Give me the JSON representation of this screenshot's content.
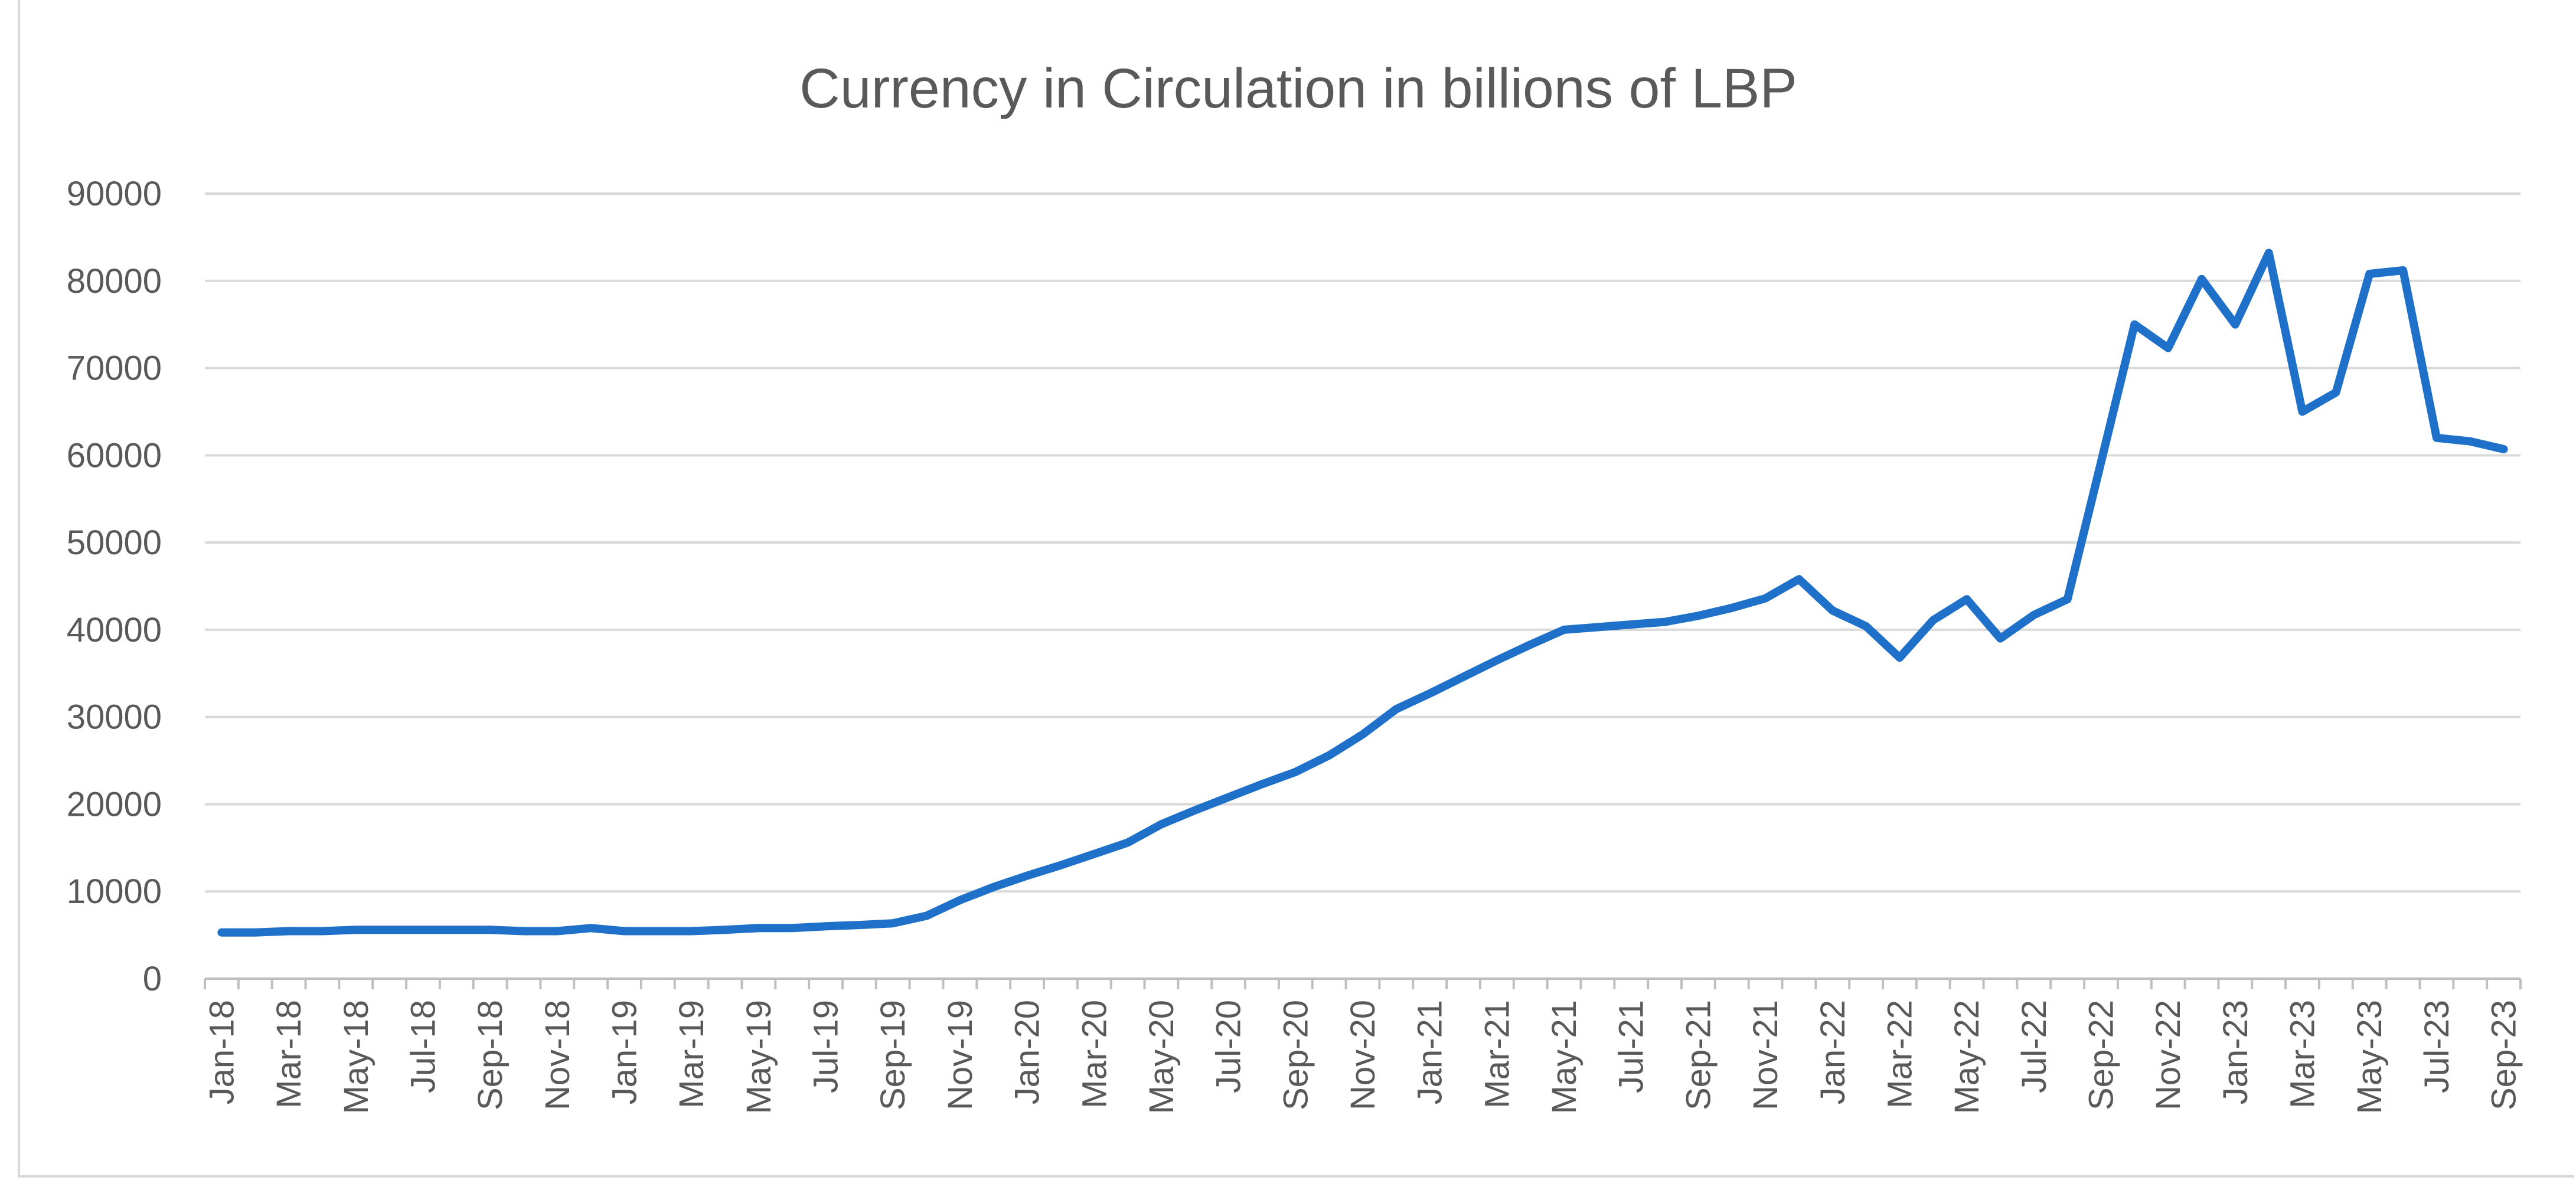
{
  "chart_data": {
    "type": "line",
    "title": "Currency in Circulation in billions of LBP",
    "xlabel": "",
    "ylabel": "",
    "ylim": [
      0,
      90000
    ],
    "yticks": [
      "0",
      "10000",
      "20000",
      "30000",
      "40000",
      "50000",
      "60000",
      "70000",
      "80000",
      "90000"
    ],
    "grid": true,
    "legend": "none",
    "categories": [
      "Jan-18",
      "Feb-18",
      "Mar-18",
      "Apr-18",
      "May-18",
      "Jun-18",
      "Jul-18",
      "Aug-18",
      "Sep-18",
      "Oct-18",
      "Nov-18",
      "Dec-18",
      "Jan-19",
      "Feb-19",
      "Mar-19",
      "Apr-19",
      "May-19",
      "Jun-19",
      "Jul-19",
      "Aug-19",
      "Sep-19",
      "Oct-19",
      "Nov-19",
      "Dec-19",
      "Jan-20",
      "Feb-20",
      "Mar-20",
      "Apr-20",
      "May-20",
      "Jun-20",
      "Jul-20",
      "Aug-20",
      "Sep-20",
      "Oct-20",
      "Nov-20",
      "Dec-20",
      "Jan-21",
      "Feb-21",
      "Mar-21",
      "Apr-21",
      "May-21",
      "Jun-21",
      "Jul-21",
      "Aug-21",
      "Sep-21",
      "Oct-21",
      "Nov-21",
      "Dec-21",
      "Jan-22",
      "Feb-22",
      "Mar-22",
      "Apr-22",
      "May-22",
      "Jun-22",
      "Jul-22",
      "Aug-22",
      "Sep-22",
      "Oct-22",
      "Nov-22",
      "Dec-22",
      "Jan-23",
      "Feb-23",
      "Mar-23",
      "Apr-23",
      "May-23",
      "Jun-23",
      "Jul-23",
      "Aug-23",
      "Sep-23"
    ],
    "tick_labels": [
      "Jan-18",
      "Mar-18",
      "May-18",
      "Jul-18",
      "Sep-18",
      "Nov-18",
      "Jan-19",
      "Mar-19",
      "May-19",
      "Jul-19",
      "Sep-19",
      "Nov-19",
      "Jan-20",
      "Mar-20",
      "May-20",
      "Jul-20",
      "Sep-20",
      "Nov-20",
      "Jan-21",
      "Mar-21",
      "May-21",
      "Jul-21",
      "Sep-21",
      "Nov-21",
      "Jan-22",
      "Mar-22",
      "May-22",
      "Jul-22",
      "Sep-22",
      "Nov-22",
      "Jan-23",
      "Mar-23",
      "May-23",
      "Jul-23",
      "Sep-23"
    ],
    "series": [
      {
        "name": "Currency in Circulation",
        "color": "#1f70c8",
        "values": [
          5300,
          5300,
          5450,
          5450,
          5600,
          5600,
          5600,
          5600,
          5600,
          5450,
          5450,
          5800,
          5450,
          5450,
          5450,
          5600,
          5800,
          5800,
          6000,
          6150,
          6350,
          7200,
          9000,
          10500,
          11800,
          13000,
          14300,
          15600,
          17700,
          19300,
          20800,
          22300,
          23700,
          25600,
          28000,
          30900,
          32700,
          34600,
          36500,
          38300,
          40000,
          40300,
          40600,
          40900,
          41600,
          42500,
          43600,
          45800,
          42200,
          40400,
          36800,
          41100,
          43500,
          39000,
          41700,
          43500,
          59200,
          75000,
          72300,
          80200,
          75000,
          83200,
          65000,
          67200,
          80800,
          81200,
          62000,
          61600,
          60700
        ]
      }
    ]
  }
}
